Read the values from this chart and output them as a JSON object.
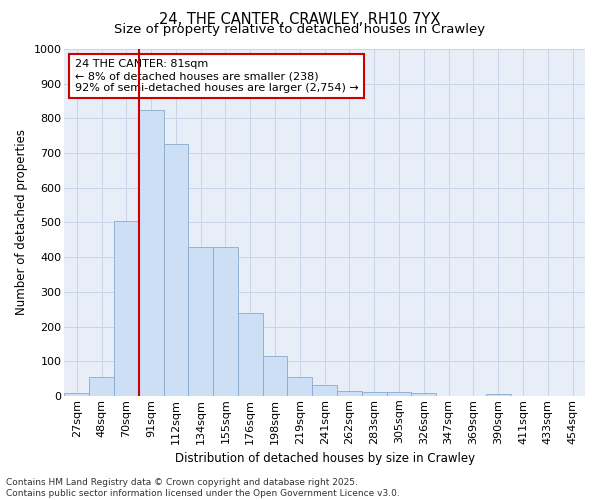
{
  "title": "24, THE CANTER, CRAWLEY, RH10 7YX",
  "subtitle": "Size of property relative to detached houses in Crawley",
  "xlabel": "Distribution of detached houses by size in Crawley",
  "ylabel": "Number of detached properties",
  "categories": [
    "27sqm",
    "48sqm",
    "70sqm",
    "91sqm",
    "112sqm",
    "134sqm",
    "155sqm",
    "176sqm",
    "198sqm",
    "219sqm",
    "241sqm",
    "262sqm",
    "283sqm",
    "305sqm",
    "326sqm",
    "347sqm",
    "369sqm",
    "390sqm",
    "411sqm",
    "433sqm",
    "454sqm"
  ],
  "values": [
    8,
    55,
    505,
    825,
    725,
    430,
    430,
    240,
    115,
    55,
    30,
    14,
    10,
    10,
    8,
    0,
    0,
    5,
    0,
    0,
    0
  ],
  "bar_color": "#ccdff5",
  "bar_edge_color": "#88aacc",
  "red_line_x": 2.5,
  "annotation_text": "24 THE CANTER: 81sqm\n← 8% of detached houses are smaller (238)\n92% of semi-detached houses are larger (2,754) →",
  "annotation_box_facecolor": "#ffffff",
  "annotation_box_edge": "#cc0000",
  "ylim": [
    0,
    1000
  ],
  "yticks": [
    0,
    100,
    200,
    300,
    400,
    500,
    600,
    700,
    800,
    900,
    1000
  ],
  "grid_color": "#c8d4e8",
  "background_color": "#e8eef8",
  "footer_line1": "Contains HM Land Registry data © Crown copyright and database right 2025.",
  "footer_line2": "Contains public sector information licensed under the Open Government Licence v3.0.",
  "title_fontsize": 10.5,
  "subtitle_fontsize": 9.5,
  "axis_label_fontsize": 8.5,
  "tick_fontsize": 8,
  "footer_fontsize": 6.5,
  "annotation_fontsize": 8
}
